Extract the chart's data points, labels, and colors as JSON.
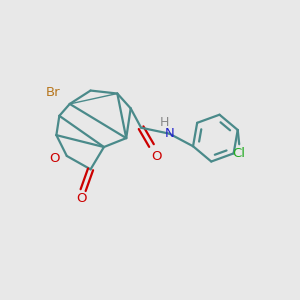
{
  "background_color": "#e8e8e8",
  "bond_color": "#4a8a8a",
  "atom_colors": {
    "Br": "#b87820",
    "O": "#cc0000",
    "N": "#2222cc",
    "Cl": "#22aa22",
    "H": "#888888"
  },
  "figsize": [
    3.0,
    3.0
  ],
  "dpi": 100
}
